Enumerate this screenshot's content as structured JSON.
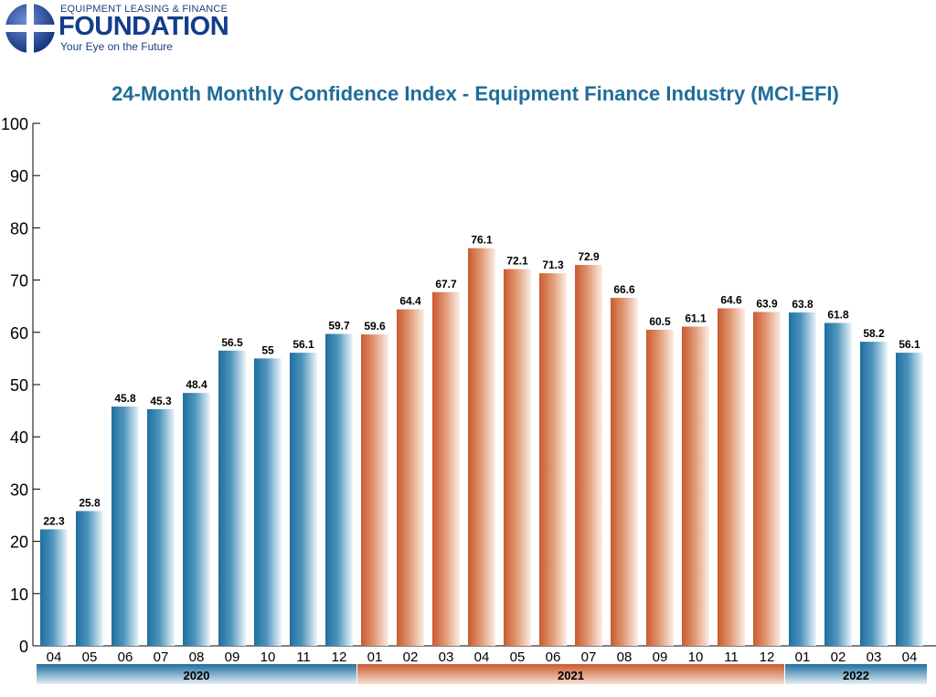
{
  "logo": {
    "line1": "EQUIPMENT LEASING & FINANCE",
    "name": "FOUNDATION",
    "tagline": "Your Eye on the Future"
  },
  "colors": {
    "blue": "#2278a6",
    "orange": "#d2693e",
    "title": "#1f6d99",
    "logo": "#123d8a"
  },
  "chart_data": {
    "type": "bar",
    "title": "24-Month Monthly Confidence Index - Equipment Finance Industry (MCI-EFI)",
    "xlabel": "",
    "ylabel": "",
    "ylim": [
      0,
      100
    ],
    "yticks": [
      0,
      10,
      20,
      30,
      40,
      50,
      60,
      70,
      80,
      90,
      100
    ],
    "grid": false,
    "categories": [
      "04",
      "05",
      "06",
      "07",
      "08",
      "09",
      "10",
      "11",
      "12",
      "01",
      "02",
      "03",
      "04",
      "05",
      "06",
      "07",
      "08",
      "09",
      "10",
      "11",
      "12",
      "01",
      "02",
      "03",
      "04"
    ],
    "values": [
      22.3,
      25.8,
      45.8,
      45.3,
      48.4,
      56.5,
      55,
      56.1,
      59.7,
      59.6,
      64.4,
      67.7,
      76.1,
      72.1,
      71.3,
      72.9,
      66.6,
      60.5,
      61.1,
      64.6,
      63.9,
      63.8,
      61.8,
      58.2,
      56.1
    ],
    "groups": [
      {
        "label": "2020",
        "start": 0,
        "end": 8,
        "color": "blue"
      },
      {
        "label": "2021",
        "start": 9,
        "end": 20,
        "color": "orange"
      },
      {
        "label": "2022",
        "start": 21,
        "end": 24,
        "color": "blue"
      }
    ]
  }
}
